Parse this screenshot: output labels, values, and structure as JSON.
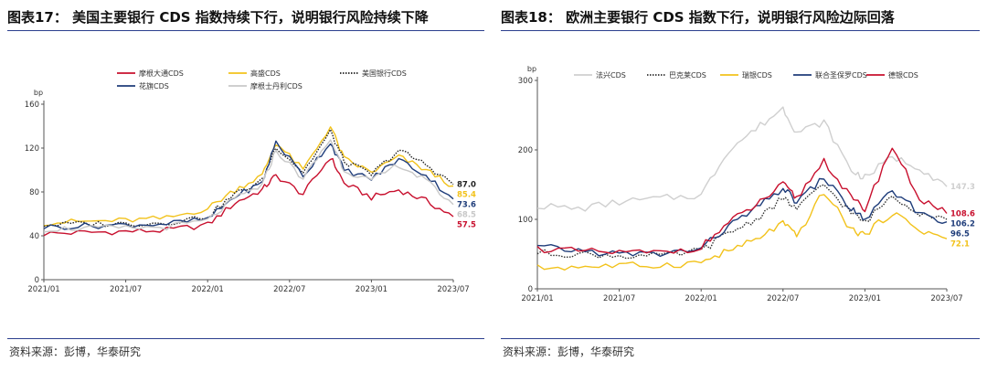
{
  "left": {
    "title": "图表17：  美国主要银行 CDS 指数持续下行，说明银行风险持续下降",
    "source": "资料来源：彭博，华泰研究",
    "chart_data": {
      "type": "line",
      "ylabel": "bp",
      "ylim": [
        0,
        160
      ],
      "yticks": [
        0,
        40,
        80,
        120,
        160
      ],
      "xticks": [
        "2021/01",
        "2021/07",
        "2022/01",
        "2022/07",
        "2023/01",
        "2023/07"
      ],
      "legend_position": "top",
      "series": [
        {
          "name": "摩根大通CDS",
          "color": "#c8102e",
          "style": "solid",
          "end_label": "57.5",
          "x": [
            "2021/01",
            "2021/04",
            "2021/07",
            "2021/10",
            "2022/01",
            "2022/03",
            "2022/05",
            "2022/06",
            "2022/08",
            "2022/10",
            "2022/11",
            "2023/01",
            "2023/03",
            "2023/05",
            "2023/07"
          ],
          "values": [
            42,
            43,
            44,
            45,
            50,
            70,
            82,
            95,
            78,
            112,
            88,
            75,
            82,
            72,
            57.5
          ]
        },
        {
          "name": "高盛CDS",
          "color": "#f2c21b",
          "style": "solid",
          "end_label": "85.4",
          "x": [
            "2021/01",
            "2021/04",
            "2021/07",
            "2021/10",
            "2022/01",
            "2022/03",
            "2022/05",
            "2022/06",
            "2022/08",
            "2022/10",
            "2022/11",
            "2023/01",
            "2023/03",
            "2023/05",
            "2023/07"
          ],
          "values": [
            52,
            53,
            54,
            56,
            65,
            82,
            95,
            125,
            100,
            140,
            110,
            98,
            112,
            100,
            85.4
          ]
        },
        {
          "name": "美国银行CDS",
          "color": "#222222",
          "style": "dotted",
          "end_label": "87.0",
          "x": [
            "2021/01",
            "2021/04",
            "2021/07",
            "2021/10",
            "2022/01",
            "2022/03",
            "2022/05",
            "2022/06",
            "2022/08",
            "2022/10",
            "2022/11",
            "2023/01",
            "2023/03",
            "2023/05",
            "2023/07"
          ],
          "values": [
            50,
            51,
            51,
            52,
            58,
            78,
            90,
            122,
            98,
            135,
            108,
            96,
            118,
            105,
            87.0
          ]
        },
        {
          "name": "花旗CDS",
          "color": "#1f3d7a",
          "style": "solid",
          "end_label": "73.6",
          "x": [
            "2021/01",
            "2021/04",
            "2021/07",
            "2021/10",
            "2022/01",
            "2022/03",
            "2022/05",
            "2022/06",
            "2022/08",
            "2022/10",
            "2022/11",
            "2023/01",
            "2023/03",
            "2023/05",
            "2023/07"
          ],
          "values": [
            48,
            49,
            50,
            51,
            55,
            76,
            88,
            126,
            95,
            125,
            100,
            92,
            110,
            95,
            73.6
          ]
        },
        {
          "name": "摩根士丹利CDS",
          "color": "#c8c8c8",
          "style": "solid",
          "end_label": "68.5",
          "x": [
            "2021/01",
            "2021/04",
            "2021/07",
            "2021/10",
            "2022/01",
            "2022/03",
            "2022/05",
            "2022/06",
            "2022/08",
            "2022/10",
            "2022/11",
            "2023/01",
            "2023/03",
            "2023/05",
            "2023/07"
          ],
          "values": [
            46,
            47,
            47,
            48,
            54,
            74,
            86,
            118,
            92,
            128,
            100,
            90,
            105,
            90,
            68.5
          ]
        }
      ]
    }
  },
  "right": {
    "title": "图表18：  欧洲主要银行 CDS 指数下行，说明银行风险边际回落",
    "source": "资料来源：彭博，华泰研究",
    "chart_data": {
      "type": "line",
      "ylabel": "bp",
      "ylim": [
        0,
        300
      ],
      "yticks": [
        0,
        100,
        200,
        300
      ],
      "xticks": [
        "2021/01",
        "2021/07",
        "2022/01",
        "2022/07",
        "2023/01",
        "2023/07"
      ],
      "legend_position": "top",
      "series": [
        {
          "name": "法兴CDS",
          "color": "#cfcfcf",
          "style": "solid",
          "end_label": "147.3",
          "x": [
            "2021/01",
            "2021/04",
            "2021/07",
            "2021/10",
            "2022/01",
            "2022/03",
            "2022/05",
            "2022/07",
            "2022/08",
            "2022/10",
            "2022/12",
            "2023/01",
            "2023/03",
            "2023/05",
            "2023/07"
          ],
          "values": [
            120,
            115,
            125,
            130,
            135,
            200,
            230,
            260,
            225,
            240,
            170,
            160,
            190,
            175,
            147.3
          ]
        },
        {
          "name": "巴克莱CDS",
          "color": "#333333",
          "style": "dotted",
          "end_label": "",
          "x": [
            "2021/01",
            "2021/04",
            "2021/07",
            "2021/10",
            "2022/01",
            "2022/03",
            "2022/05",
            "2022/07",
            "2022/08",
            "2022/10",
            "2022/12",
            "2023/01",
            "2023/03",
            "2023/05",
            "2023/07"
          ],
          "values": [
            52,
            50,
            48,
            47,
            55,
            80,
            100,
            130,
            115,
            150,
            110,
            95,
            135,
            110,
            100
          ]
        },
        {
          "name": "瑞银CDS",
          "color": "#f2c21b",
          "style": "solid",
          "end_label": "72.1",
          "x": [
            "2021/01",
            "2021/04",
            "2021/07",
            "2021/10",
            "2022/01",
            "2022/03",
            "2022/05",
            "2022/07",
            "2022/08",
            "2022/10",
            "2022/12",
            "2023/01",
            "2023/03",
            "2023/05",
            "2023/07"
          ],
          "values": [
            30,
            32,
            33,
            34,
            38,
            55,
            70,
            95,
            75,
            140,
            85,
            78,
            110,
            85,
            72.1
          ]
        },
        {
          "name": "联合圣保罗CDS",
          "color": "#1f3d7a",
          "style": "solid",
          "end_label": "96.5",
          "x": [
            "2021/01",
            "2021/04",
            "2021/07",
            "2021/10",
            "2022/01",
            "2022/03",
            "2022/05",
            "2022/07",
            "2022/08",
            "2022/10",
            "2022/12",
            "2023/01",
            "2023/03",
            "2023/05",
            "2023/07"
          ],
          "values": [
            60,
            55,
            50,
            50,
            58,
            90,
            115,
            145,
            125,
            160,
            115,
            100,
            140,
            110,
            96.5
          ]
        },
        {
          "name": "德银CDS",
          "color": "#c8102e",
          "style": "solid",
          "end_label": "108.6",
          "x": [
            "2021/01",
            "2021/04",
            "2021/07",
            "2021/10",
            "2022/01",
            "2022/03",
            "2022/05",
            "2022/07",
            "2022/08",
            "2022/10",
            "2022/12",
            "2023/01",
            "2023/03",
            "2023/05",
            "2023/07"
          ],
          "values": [
            58,
            54,
            52,
            52,
            60,
            95,
            120,
            150,
            130,
            185,
            130,
            115,
            205,
            130,
            108.6
          ]
        },
        {
          "name": "",
          "color": "#1f3d7a",
          "style": "solid",
          "end_label": "106.2",
          "x": [],
          "values": []
        }
      ]
    }
  }
}
